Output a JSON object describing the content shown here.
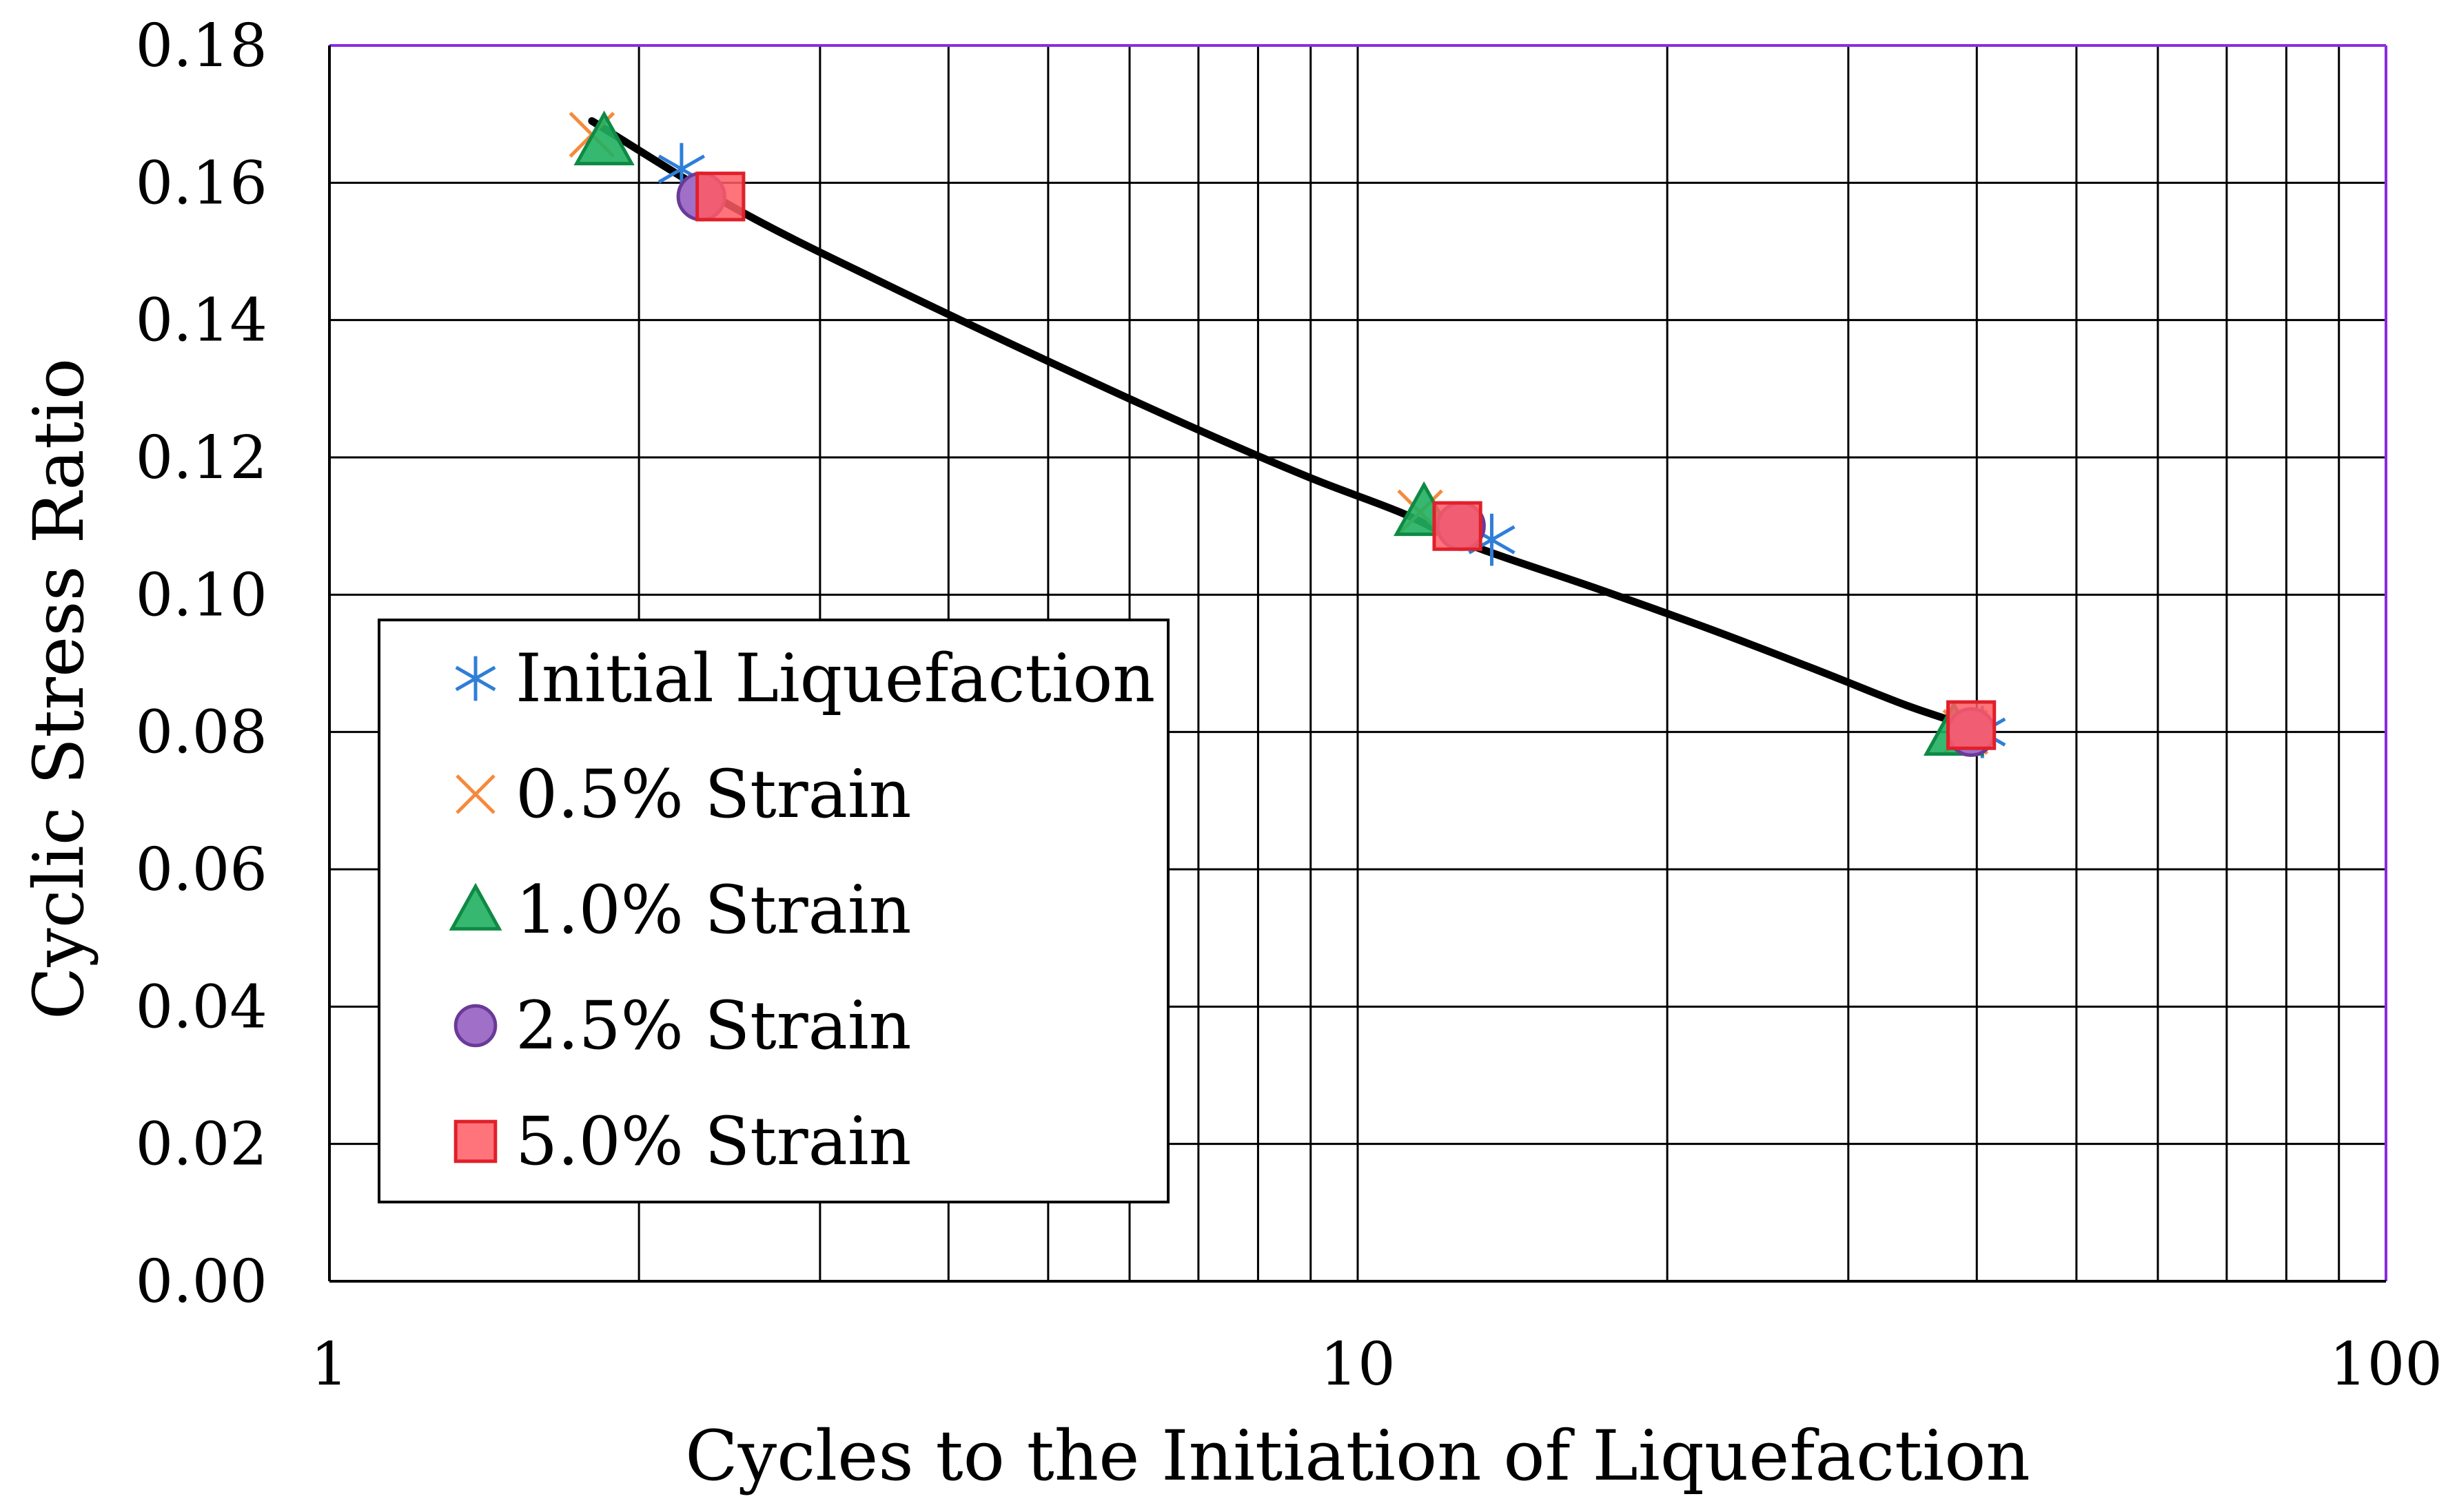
{
  "chart_data": {
    "type": "scatter",
    "title": "",
    "xlabel": "Cycles to the Initiation of Liquefaction",
    "ylabel": "Cyclic Stress Ratio",
    "xscale": "log",
    "xlim": [
      1,
      100
    ],
    "ylim": [
      0,
      0.18
    ],
    "x_ticks": [
      {
        "value": 1,
        "label": "1"
      },
      {
        "value": 10,
        "label": "10"
      },
      {
        "value": 100,
        "label": "100"
      }
    ],
    "y_ticks": [
      {
        "value": 0.0,
        "label": "0.00"
      },
      {
        "value": 0.02,
        "label": "0.02"
      },
      {
        "value": 0.04,
        "label": "0.04"
      },
      {
        "value": 0.06,
        "label": "0.06"
      },
      {
        "value": 0.08,
        "label": "0.08"
      },
      {
        "value": 0.1,
        "label": "0.10"
      },
      {
        "value": 0.12,
        "label": "0.12"
      },
      {
        "value": 0.14,
        "label": "0.14"
      },
      {
        "value": 0.16,
        "label": "0.16"
      },
      {
        "value": 0.18,
        "label": "0.18"
      }
    ],
    "grid": true,
    "legend_position": "left",
    "series": [
      {
        "name": "Initial Liquefaction",
        "marker": "asterisk",
        "color": "#2f7ed8",
        "x": [
          2.2,
          13.5,
          40.5
        ],
        "y": [
          0.162,
          0.108,
          0.08
        ]
      },
      {
        "name": "0.5% Strain",
        "marker": "x",
        "color": "#f58a3c",
        "x": [
          1.8,
          11.5,
          39.0
        ],
        "y": [
          0.167,
          0.112,
          0.08
        ]
      },
      {
        "name": "1.0% Strain",
        "marker": "triangle",
        "color": "#20b060",
        "x": [
          1.85,
          11.6,
          38.0
        ],
        "y": [
          0.166,
          0.112,
          0.08
        ]
      },
      {
        "name": "2.5% Strain",
        "marker": "circle",
        "color": "#a070c8",
        "x": [
          2.3,
          12.6,
          39.5
        ],
        "y": [
          0.158,
          0.11,
          0.08
        ]
      },
      {
        "name": "5.0% Strain",
        "marker": "square",
        "color": "#ff5a64",
        "x": [
          2.4,
          12.5,
          39.5
        ],
        "y": [
          0.158,
          0.11,
          0.081
        ]
      }
    ],
    "trendline": {
      "color": "#000000",
      "x": [
        1.8,
        2.5,
        3.5,
        5,
        7,
        9,
        11,
        13,
        17,
        22,
        28,
        34,
        39
      ],
      "y": [
        0.169,
        0.156,
        0.145,
        0.134,
        0.124,
        0.117,
        0.112,
        0.107,
        0.101,
        0.095,
        0.089,
        0.084,
        0.081
      ]
    }
  }
}
